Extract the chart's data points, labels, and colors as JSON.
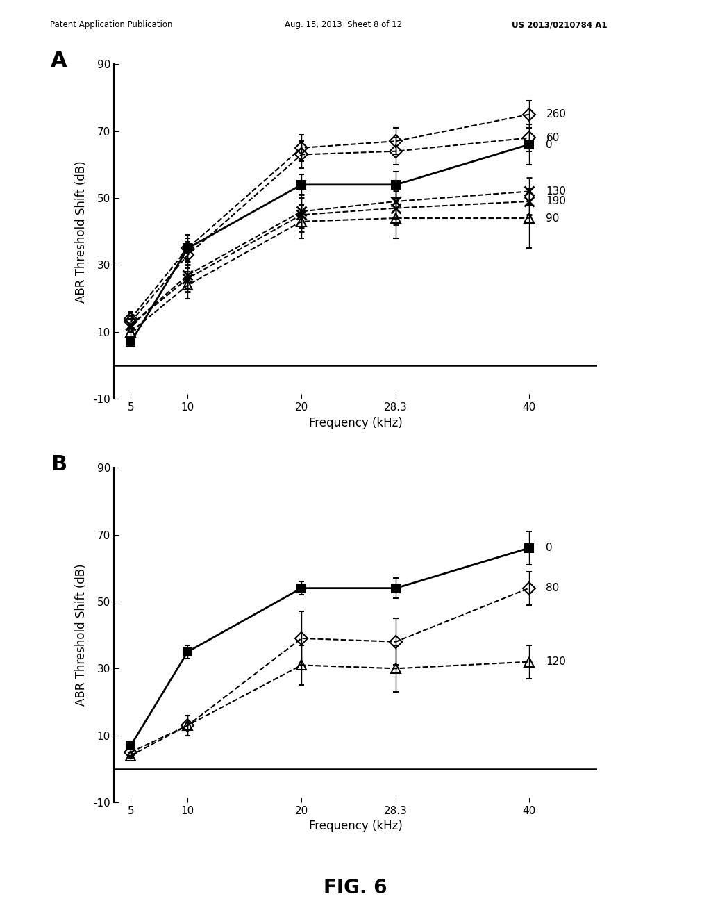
{
  "header_left": "Patent Application Publication",
  "header_mid": "Aug. 15, 2013  Sheet 8 of 12",
  "header_right": "US 2013/0210784 A1",
  "fig_label": "FIG. 6",
  "x_values": [
    5,
    10,
    20,
    28.3,
    40
  ],
  "panel_A": {
    "label": "A",
    "ylabel": "ABR Threshold Shift (dB)",
    "xlabel": "Frequency (kHz)",
    "ylim": [
      -10,
      90
    ],
    "yticks": [
      -10,
      10,
      30,
      50,
      70,
      90
    ],
    "series": [
      {
        "name": "0",
        "y": [
          7,
          35,
          54,
          54,
          66
        ],
        "yerr": [
          1.0,
          3.0,
          3.0,
          4.0,
          6.0
        ],
        "marker": "s",
        "fillstyle": "full",
        "linestyle": "-",
        "linewidth": 2.0
      },
      {
        "name": "60",
        "y": [
          13,
          33,
          63,
          64,
          68
        ],
        "yerr": [
          2.0,
          4.0,
          4.0,
          4.0,
          4.0
        ],
        "marker": "D",
        "fillstyle": "none",
        "linestyle": "--",
        "linewidth": 1.5
      },
      {
        "name": "260",
        "y": [
          14,
          35,
          65,
          67,
          75
        ],
        "yerr": [
          2.0,
          4.0,
          4.0,
          4.0,
          4.0
        ],
        "marker": "D",
        "fillstyle": "none",
        "linestyle": "--",
        "linewidth": 1.5
      },
      {
        "name": "130",
        "y": [
          12,
          27,
          46,
          49,
          52
        ],
        "yerr": [
          2.0,
          4.0,
          5.0,
          5.0,
          4.0
        ],
        "marker": "x",
        "fillstyle": "none",
        "linestyle": "--",
        "linewidth": 1.5
      },
      {
        "name": "190",
        "y": [
          12,
          26,
          45,
          47,
          49
        ],
        "yerr": [
          2.0,
          4.0,
          5.0,
          5.0,
          4.0
        ],
        "marker": "x",
        "fillstyle": "none",
        "linestyle": "--",
        "linewidth": 1.5
      },
      {
        "name": "90",
        "y": [
          10,
          24,
          43,
          44,
          44
        ],
        "yerr": [
          2.0,
          4.0,
          5.0,
          6.0,
          9.0
        ],
        "marker": "^",
        "fillstyle": "none",
        "linestyle": "--",
        "linewidth": 1.5
      }
    ]
  },
  "panel_B": {
    "label": "B",
    "ylabel": "ABR Threshold Shift (dB)",
    "xlabel": "Frequency (kHz)",
    "ylim": [
      -10,
      90
    ],
    "yticks": [
      -10,
      10,
      30,
      50,
      70,
      90
    ],
    "series": [
      {
        "name": "0",
        "y": [
          7,
          35,
          54,
          54,
          66
        ],
        "yerr": [
          1.0,
          2.0,
          2.0,
          3.0,
          5.0
        ],
        "marker": "s",
        "fillstyle": "full",
        "linestyle": "-",
        "linewidth": 2.0
      },
      {
        "name": "80",
        "y": [
          5,
          13,
          39,
          38,
          54
        ],
        "yerr": [
          1.0,
          3.0,
          8.0,
          7.0,
          5.0
        ],
        "marker": "D",
        "fillstyle": "none",
        "linestyle": "--",
        "linewidth": 1.5
      },
      {
        "name": "120",
        "y": [
          4,
          13,
          31,
          30,
          32
        ],
        "yerr": [
          1.0,
          3.0,
          6.0,
          7.0,
          5.0
        ],
        "marker": "^",
        "fillstyle": "none",
        "linestyle": "--",
        "linewidth": 1.5
      }
    ]
  }
}
